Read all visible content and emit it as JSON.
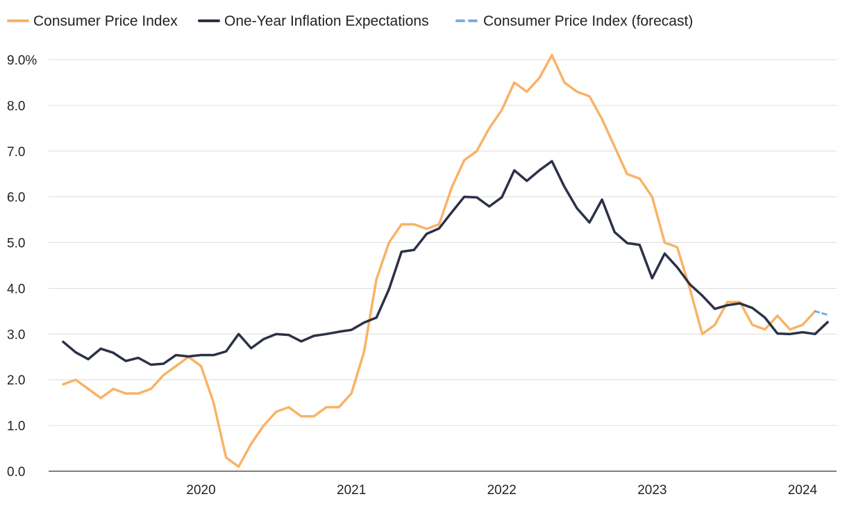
{
  "chart_data": {
    "type": "line",
    "title": "",
    "xlabel": "",
    "ylabel": "",
    "ylim": [
      0,
      9
    ],
    "grid": true,
    "legend_position": "top-left",
    "y_ticks": [
      "0.0",
      "1.0",
      "2.0",
      "3.0",
      "4.0",
      "5.0",
      "6.0",
      "7.0",
      "8.0",
      "9.0%"
    ],
    "x_ticks": [
      {
        "label": "2020",
        "month_index": 11
      },
      {
        "label": "2021",
        "month_index": 23
      },
      {
        "label": "2022",
        "month_index": 35
      },
      {
        "label": "2023",
        "month_index": 47
      },
      {
        "label": "2024",
        "month_index": 59
      }
    ],
    "x_start": "2019-02",
    "x_end": "2024-04",
    "series": [
      {
        "name": "Consumer Price Index",
        "color": "#f8b366",
        "dash": "solid",
        "start_index": 0,
        "values": [
          1.9,
          2.0,
          1.8,
          1.6,
          1.8,
          1.7,
          1.7,
          1.8,
          2.1,
          2.3,
          2.5,
          2.3,
          1.5,
          0.3,
          0.1,
          0.6,
          1.0,
          1.3,
          1.4,
          1.2,
          1.2,
          1.4,
          1.4,
          1.7,
          2.6,
          4.2,
          5.0,
          5.4,
          5.4,
          5.3,
          5.4,
          6.2,
          6.8,
          7.0,
          7.5,
          7.9,
          8.5,
          8.3,
          8.6,
          9.1,
          8.5,
          8.3,
          8.2,
          7.7,
          7.1,
          6.5,
          6.4,
          6.0,
          5.0,
          4.9,
          4.0,
          3.0,
          3.2,
          3.7,
          3.7,
          3.2,
          3.1,
          3.4,
          3.1,
          3.2,
          3.5
        ]
      },
      {
        "name": "One-Year Inflation Expectations",
        "color": "#2b3147",
        "dash": "solid",
        "start_index": 0,
        "values": [
          2.83,
          2.6,
          2.45,
          2.68,
          2.59,
          2.41,
          2.48,
          2.33,
          2.35,
          2.54,
          2.51,
          2.54,
          2.54,
          2.62,
          3.0,
          2.69,
          2.89,
          3.0,
          2.98,
          2.84,
          2.96,
          3.0,
          3.05,
          3.09,
          3.25,
          3.36,
          3.98,
          4.8,
          4.84,
          5.19,
          5.31,
          5.66,
          6.0,
          5.99,
          5.79,
          5.99,
          6.58,
          6.35,
          6.58,
          6.78,
          6.22,
          5.75,
          5.44,
          5.94,
          5.23,
          4.99,
          4.95,
          4.22,
          4.76,
          4.46,
          4.09,
          3.84,
          3.55,
          3.63,
          3.67,
          3.57,
          3.36,
          3.01,
          3.0,
          3.04,
          3.0,
          3.26
        ]
      },
      {
        "name": "Consumer Price Index (forecast)",
        "color": "#7aaee0",
        "dash": "dashed",
        "start_index": 60,
        "values": [
          3.5,
          3.42
        ]
      }
    ]
  }
}
